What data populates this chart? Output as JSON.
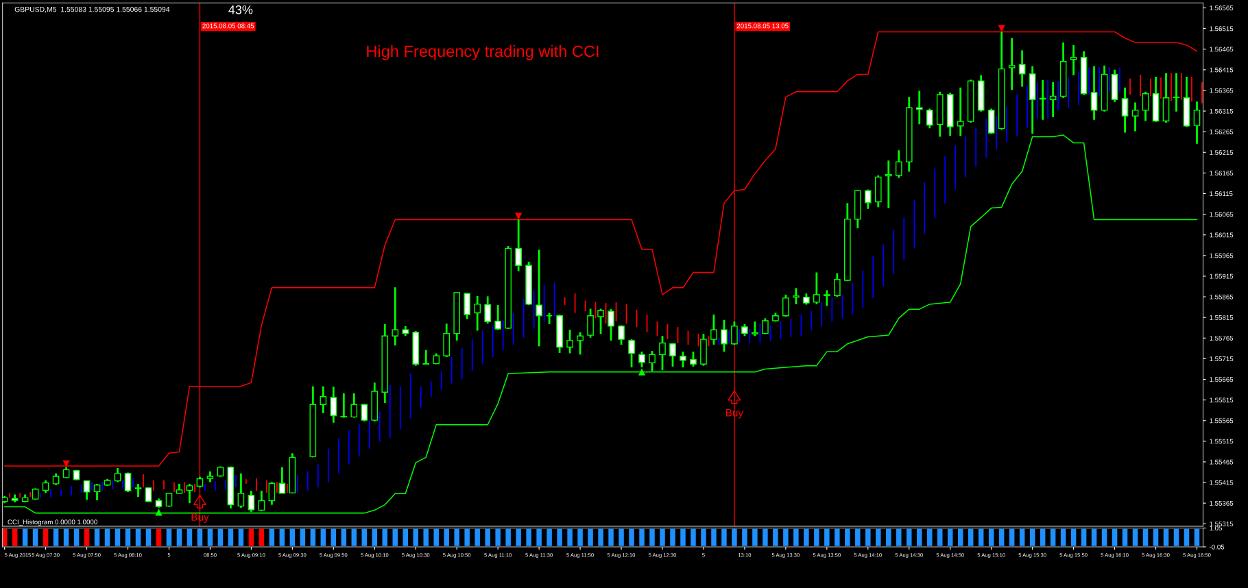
{
  "chart_data": [
    {
      "type": "candlestick",
      "title": "High Frequency trading with CCI",
      "annotations": [
        "GBPUSD,M5  1.55083 1.55095 1.55066 1.55094",
        "43%",
        {
          "text": "Buy",
          "x": "2015-08-05T08:45",
          "y": 1.55329
        },
        {
          "text": "Buy",
          "x": "2015-08-05T13:05",
          "y": 1.55582
        }
      ],
      "x": [
        "2015-08-05T07:10",
        "2015-08-05T07:15",
        "2015-08-05T07:20",
        "2015-08-05T07:25",
        "2015-08-05T07:30",
        "2015-08-05T07:35",
        "2015-08-05T07:40",
        "2015-08-05T07:45",
        "2015-08-05T07:50",
        "2015-08-05T07:55",
        "2015-08-05T08:00",
        "2015-08-05T08:05",
        "2015-08-05T08:10",
        "2015-08-05T08:15",
        "2015-08-05T08:20",
        "2015-08-05T08:25",
        "2015-08-05T08:30",
        "2015-08-05T08:35",
        "2015-08-05T08:40",
        "2015-08-05T08:45",
        "2015-08-05T08:50",
        "2015-08-05T08:55",
        "2015-08-05T09:00",
        "2015-08-05T09:05",
        "2015-08-05T09:10",
        "2015-08-05T09:15",
        "2015-08-05T09:20",
        "2015-08-05T09:25",
        "2015-08-05T09:30",
        "2015-08-05T09:35",
        "2015-08-05T09:40",
        "2015-08-05T09:45",
        "2015-08-05T09:50",
        "2015-08-05T09:55",
        "2015-08-05T10:00",
        "2015-08-05T10:05",
        "2015-08-05T10:10",
        "2015-08-05T10:15",
        "2015-08-05T10:20",
        "2015-08-05T10:25",
        "2015-08-05T10:30",
        "2015-08-05T10:35",
        "2015-08-05T10:40",
        "2015-08-05T10:45",
        "2015-08-05T10:50",
        "2015-08-05T10:55",
        "2015-08-05T11:00",
        "2015-08-05T11:05",
        "2015-08-05T11:10",
        "2015-08-05T11:15",
        "2015-08-05T11:20",
        "2015-08-05T11:25",
        "2015-08-05T11:30",
        "2015-08-05T11:35",
        "2015-08-05T11:40",
        "2015-08-05T11:45",
        "2015-08-05T11:50",
        "2015-08-05T11:55",
        "2015-08-05T12:00",
        "2015-08-05T12:05",
        "2015-08-05T12:10",
        "2015-08-05T12:15",
        "2015-08-05T12:20",
        "2015-08-05T12:25",
        "2015-08-05T12:30",
        "2015-08-05T12:35",
        "2015-08-05T12:40",
        "2015-08-05T12:45",
        "2015-08-05T12:50",
        "2015-08-05T12:55",
        "2015-08-05T13:00",
        "2015-08-05T13:05",
        "2015-08-05T13:10",
        "2015-08-05T13:15",
        "2015-08-05T13:20",
        "2015-08-05T13:25",
        "2015-08-05T13:30",
        "2015-08-05T13:35",
        "2015-08-05T13:40",
        "2015-08-05T13:45",
        "2015-08-05T13:50",
        "2015-08-05T13:55",
        "2015-08-05T14:00",
        "2015-08-05T14:05",
        "2015-08-05T14:10",
        "2015-08-05T14:15",
        "2015-08-05T14:20",
        "2015-08-05T14:25",
        "2015-08-05T14:30",
        "2015-08-05T14:35",
        "2015-08-05T14:40",
        "2015-08-05T14:45",
        "2015-08-05T14:50",
        "2015-08-05T14:55",
        "2015-08-05T15:00",
        "2015-08-05T15:05",
        "2015-08-05T15:10",
        "2015-08-05T15:15",
        "2015-08-05T15:20",
        "2015-08-05T15:25",
        "2015-08-05T15:30",
        "2015-08-05T15:35",
        "2015-08-05T15:40",
        "2015-08-05T15:45",
        "2015-08-05T15:50",
        "2015-08-05T15:55",
        "2015-08-05T16:00",
        "2015-08-05T16:05",
        "2015-08-05T16:10",
        "2015-08-05T16:15",
        "2015-08-05T16:20",
        "2015-08-05T16:25",
        "2015-08-05T16:30",
        "2015-08-05T16:35",
        "2015-08-05T16:40",
        "2015-08-05T16:45",
        "2015-08-05T16:50"
      ],
      "ohlc": [
        [
          1.55369,
          1.55382,
          1.55365,
          1.55378
        ],
        [
          1.55376,
          1.55386,
          1.55367,
          1.55372
        ],
        [
          1.55369,
          1.55386,
          1.55367,
          1.55378
        ],
        [
          1.55375,
          1.55401,
          1.55373,
          1.55399
        ],
        [
          1.55396,
          1.5542,
          1.5539,
          1.55414
        ],
        [
          1.55412,
          1.55437,
          1.55409,
          1.5543
        ],
        [
          1.55427,
          1.55452,
          1.55426,
          1.55446
        ],
        [
          1.55444,
          1.55446,
          1.5542,
          1.55422
        ],
        [
          1.55419,
          1.5542,
          1.55373,
          1.55392
        ],
        [
          1.55393,
          1.55412,
          1.55372,
          1.55409
        ],
        [
          1.55409,
          1.55424,
          1.55407,
          1.5542
        ],
        [
          1.55419,
          1.5545,
          1.55416,
          1.55437
        ],
        [
          1.55437,
          1.55439,
          1.55392,
          1.55395
        ],
        [
          1.55402,
          1.55412,
          1.5538,
          1.554
        ],
        [
          1.55402,
          1.55403,
          1.55367,
          1.55369
        ],
        [
          1.55371,
          1.55376,
          1.55354,
          1.55357
        ],
        [
          1.55358,
          1.5539,
          1.55356,
          1.55389
        ],
        [
          1.55389,
          1.55412,
          1.55389,
          1.55397
        ],
        [
          1.55396,
          1.55412,
          1.55365,
          1.55407
        ],
        [
          1.55406,
          1.55429,
          1.55403,
          1.55424
        ],
        [
          1.55425,
          1.55442,
          1.55416,
          1.5543
        ],
        [
          1.55431,
          1.55454,
          1.55429,
          1.55452
        ],
        [
          1.55452,
          1.55454,
          1.55352,
          1.55361
        ],
        [
          1.55358,
          1.55437,
          1.55354,
          1.55389
        ],
        [
          1.55384,
          1.55395,
          1.55344,
          1.55349
        ],
        [
          1.55348,
          1.55395,
          1.55346,
          1.55371
        ],
        [
          1.55371,
          1.55416,
          1.55361,
          1.55413
        ],
        [
          1.55413,
          1.55452,
          1.55389,
          1.55389
        ],
        [
          1.5539,
          1.55486,
          1.55389,
          1.55476
        ],
        null,
        [
          1.55478,
          1.55648,
          1.55476,
          1.55604
        ],
        [
          1.55604,
          1.55648,
          1.55583,
          1.55623
        ],
        [
          1.55621,
          1.55647,
          1.5556,
          1.55577
        ],
        [
          1.55574,
          1.55631,
          1.55572,
          1.55575
        ],
        [
          1.55574,
          1.55631,
          1.55572,
          1.55604
        ],
        [
          1.55604,
          1.55606,
          1.55563,
          1.55566
        ],
        [
          1.55566,
          1.55657,
          1.55563,
          1.55636
        ],
        [
          1.55634,
          1.55799,
          1.55608,
          1.5577
        ],
        [
          1.5577,
          1.55888,
          1.55747,
          1.55785
        ],
        [
          1.55785,
          1.55794,
          1.5577,
          1.55776
        ],
        [
          1.55779,
          1.55782,
          1.55698,
          1.55702
        ],
        [
          1.55702,
          1.55736,
          1.55702,
          1.55703
        ],
        [
          1.55703,
          1.55728,
          1.55702,
          1.55722
        ],
        [
          1.55722,
          1.558,
          1.55719,
          1.55776
        ],
        [
          1.55776,
          1.55875,
          1.55759,
          1.55875
        ],
        [
          1.55873,
          1.55875,
          1.55811,
          1.55822
        ],
        [
          1.55826,
          1.55867,
          1.55783,
          1.55847
        ],
        [
          1.55846,
          1.55866,
          1.558,
          1.55805
        ],
        [
          1.55806,
          1.55845,
          1.55785,
          1.55787
        ],
        [
          1.55789,
          1.55988,
          1.55787,
          1.55982
        ],
        [
          1.55982,
          1.56052,
          1.55927,
          1.55941
        ],
        [
          1.55941,
          1.5595,
          1.55845,
          1.55847
        ],
        [
          1.55845,
          1.55979,
          1.55745,
          1.55819
        ],
        [
          1.55819,
          1.55826,
          1.55799,
          1.55819
        ],
        [
          1.55819,
          1.55822,
          1.55729,
          1.55743
        ],
        [
          1.55743,
          1.55785,
          1.55728,
          1.55759
        ],
        [
          1.55759,
          1.55779,
          1.55725,
          1.5577
        ],
        [
          1.55772,
          1.55836,
          1.55766,
          1.55819
        ],
        [
          1.55817,
          1.55836,
          1.55775,
          1.55832
        ],
        [
          1.5583,
          1.55835,
          1.55759,
          1.55794
        ],
        [
          1.55794,
          1.55796,
          1.55749,
          1.55762
        ],
        [
          1.55759,
          1.55762,
          1.55694,
          1.55728
        ],
        [
          1.55725,
          1.55732,
          1.55694,
          1.55706
        ],
        [
          1.55705,
          1.55734,
          1.55685,
          1.55725
        ],
        [
          1.55725,
          1.5577,
          1.55687,
          1.55753
        ],
        [
          1.55751,
          1.55753,
          1.55696,
          1.55722
        ],
        [
          1.55721,
          1.55732,
          1.55694,
          1.55711
        ],
        [
          1.55713,
          1.55732,
          1.55696,
          1.55702
        ],
        [
          1.55702,
          1.55775,
          1.55698,
          1.55762
        ],
        [
          1.55762,
          1.55822,
          1.55749,
          1.55785
        ],
        [
          1.55785,
          1.55809,
          1.55732,
          1.55751
        ],
        [
          1.55751,
          1.55805,
          1.55749,
          1.55794
        ],
        [
          1.55792,
          1.55799,
          1.5577,
          1.55776
        ],
        [
          1.55775,
          1.55805,
          1.5577,
          1.55778
        ],
        [
          1.55776,
          1.55813,
          1.55775,
          1.55807
        ],
        [
          1.55807,
          1.55826,
          1.55805,
          1.55819
        ],
        [
          1.55819,
          1.5587,
          1.55817,
          1.55862
        ],
        [
          1.55864,
          1.55886,
          1.55847,
          1.55867
        ],
        [
          1.55864,
          1.55873,
          1.55846,
          1.5585
        ],
        [
          1.55852,
          1.55924,
          1.55847,
          1.5587
        ],
        [
          1.55868,
          1.55881,
          1.55843,
          1.5587
        ],
        [
          1.55868,
          1.55922,
          1.55865,
          1.55907
        ],
        [
          1.55905,
          1.56092,
          1.55903,
          1.56053
        ],
        [
          1.56053,
          1.56122,
          1.56031,
          1.56122
        ],
        [
          1.56122,
          1.56125,
          1.56078,
          1.56093
        ],
        [
          1.56095,
          1.56159,
          1.56082,
          1.56155
        ],
        [
          1.56158,
          1.56195,
          1.5608,
          1.56161
        ],
        [
          1.56159,
          1.5622,
          1.56153,
          1.56192
        ],
        [
          1.56192,
          1.56349,
          1.56168,
          1.56323
        ],
        [
          1.56323,
          1.56364,
          1.56283,
          1.56319
        ],
        [
          1.56317,
          1.56321,
          1.56273,
          1.56281
        ],
        [
          1.56283,
          1.56362,
          1.56253,
          1.56355
        ],
        [
          1.56355,
          1.56359,
          1.56255,
          1.56277
        ],
        [
          1.56279,
          1.56372,
          1.56255,
          1.5629
        ],
        [
          1.5629,
          1.56391,
          1.56287,
          1.56388
        ],
        [
          1.56388,
          1.56402,
          1.56314,
          1.56317
        ],
        [
          1.56317,
          1.56321,
          1.5626,
          1.56262
        ],
        [
          1.56273,
          1.56507,
          1.5627,
          1.56417
        ],
        [
          1.5642,
          1.56492,
          1.56366,
          1.56425
        ],
        [
          1.56428,
          1.56462,
          1.56374,
          1.56405
        ],
        [
          1.56405,
          1.56424,
          1.5626,
          1.56343
        ],
        [
          1.56344,
          1.5639,
          1.56294,
          1.56346
        ],
        [
          1.56343,
          1.56385,
          1.563,
          1.56351
        ],
        [
          1.56351,
          1.56481,
          1.56347,
          1.56435
        ],
        [
          1.5644,
          1.56475,
          1.56402,
          1.56445
        ],
        [
          1.56445,
          1.5646,
          1.56354,
          1.56357
        ],
        [
          1.5636,
          1.56424,
          1.56294,
          1.56317
        ],
        [
          1.56317,
          1.56425,
          1.56314,
          1.56404
        ],
        [
          1.56404,
          1.56415,
          1.56337,
          1.56343
        ],
        [
          1.56345,
          1.56372,
          1.56263,
          1.56303
        ],
        [
          1.56303,
          1.56336,
          1.56266,
          1.56317
        ],
        [
          1.56317,
          1.56362,
          1.56291,
          1.56357
        ],
        [
          1.56357,
          1.56398,
          1.56289,
          1.56291
        ],
        [
          1.56291,
          1.56407,
          1.56287,
          1.56347
        ],
        [
          1.56348,
          1.56407,
          1.56314,
          1.56349
        ],
        [
          1.56347,
          1.56398,
          1.56277,
          1.56279
        ],
        [
          1.5628,
          1.56338,
          1.56236,
          1.56317
        ]
      ],
      "series": [
        {
          "type": "bar",
          "base": [
            1.55378,
            1.55378,
            1.5538,
            1.55378,
            1.55378,
            1.55382,
            1.55384,
            1.5539,
            1.55395,
            1.55395,
            1.55399,
            1.554,
            1.55403,
            1.55403,
            1.55395,
            1.55399,
            1.55392,
            1.5539,
            1.55392,
            1.55395,
            1.55395,
            1.55397,
            1.55403,
            1.55412,
            1.55395,
            1.5539,
            1.5539,
            1.5539,
            1.5539,
            1.55395,
            1.55403,
            1.55416,
            1.55437,
            1.55459,
            1.5548,
            1.55497,
            1.55514,
            1.55523,
            1.55544,
            1.5557,
            1.55597,
            1.55623,
            1.5564,
            1.55655,
            1.55665,
            1.55685,
            1.55702,
            1.55719,
            1.55736,
            1.55749,
            1.55766,
            1.55788,
            1.55805,
            1.55817,
            1.55845,
            1.55826,
            1.5583,
            1.55813,
            1.558,
            1.55805,
            1.558,
            1.55792,
            1.55779,
            1.5577,
            1.55762,
            1.55753,
            1.55749,
            1.55745,
            1.55745,
            1.55749,
            1.55751,
            1.55753,
            1.55753,
            1.55753,
            1.55758,
            1.55762,
            1.55768,
            1.5577,
            1.55783,
            1.55794,
            1.55805,
            1.55813,
            1.55822,
            1.55839,
            1.55862,
            1.5589,
            1.5592,
            1.55954,
            1.55984,
            1.56018,
            1.56055,
            1.56091,
            1.56125,
            1.56155,
            1.5618,
            1.56202,
            1.56223,
            1.5624,
            1.56255,
            1.56274,
            1.56296,
            1.56296,
            1.56317,
            1.56323,
            1.5633,
            1.56355,
            1.56351,
            1.5636,
            1.5636,
            1.56355,
            1.56351,
            1.56351,
            1.56345,
            1.5634,
            1.56343,
            1.56338,
            1.56334
          ],
          "values": [
            0.00012,
            0.00012,
            0.00012,
            0.0001,
            0.00021,
            0.00017,
            0.00023,
            0.00019,
            0.00021,
            0.00021,
            0.00021,
            0.0002,
            0.00022,
            0.00032,
            0.00025,
            0.00021,
            0.00024,
            0.00026,
            0.0002,
            0.00017,
            0.00023,
            0.00023,
            0.0003,
            0.00011,
            0.0003,
            0.0003,
            0.00026,
            0.00022,
            0.00043,
            0.00047,
            0.00056,
            0.00081,
            0.00086,
            0.00084,
            0.00077,
            0.00069,
            0.00073,
            0.00128,
            0.00104,
            0.00111,
            0.00051,
            0.00037,
            0.00045,
            0.00064,
            0.00076,
            0.00077,
            0.00081,
            0.00077,
            0.00073,
            0.00077,
            0.00094,
            0.00093,
            0.00089,
            0.00082,
            0.00019,
            0.00047,
            0.00026,
            0.0004,
            0.0005,
            0.00047,
            0.00047,
            0.00042,
            0.00043,
            0.00035,
            0.00037,
            0.00039,
            0.00034,
            0.0003,
            0.00025,
            0.00017,
            0.00032,
            0.00034,
            0.00034,
            0.00047,
            0.00038,
            0.00043,
            0.00043,
            0.00052,
            0.00047,
            0.00058,
            0.00059,
            0.00056,
            0.00077,
            0.0009,
            0.00102,
            0.00102,
            0.00107,
            0.00103,
            0.00115,
            0.00124,
            0.00121,
            0.00115,
            0.00107,
            0.00098,
            0.00094,
            0.00094,
            0.00081,
            0.00086,
            0.001,
            0.00103,
            0.00089,
            0.00094,
            0.00071,
            0.00075,
            0.00081,
            0.00065,
            0.00071,
            0.00062,
            0.0006,
            0.00039,
            0.00052,
            0.00043,
            0.00051,
            0.00067,
            0.00064,
            0.0006,
            0.00051
          ],
          "colors": [
            "#ff0000",
            "#ff0000",
            "#ff0000",
            "#0000ff",
            "#0000ff",
            "#0000ff",
            "#0000ff",
            "#0000ff",
            "#0000ff",
            "#0000ff",
            "#0000ff",
            "#0000ff",
            "#0000ff",
            "#ff0000",
            "#ff0000",
            "#ff0000",
            "#ff0000",
            "#ff0000",
            "#ff0000",
            "#0000ff",
            "#0000ff",
            "#0000ff",
            "#0000ff",
            "#ff0000",
            "#ff0000",
            "#ff0000",
            "#ff0000",
            "#ff0000",
            "#0000ff",
            "#0000ff",
            "#0000ff",
            "#0000ff",
            "#0000ff",
            "#0000ff",
            "#0000ff",
            "#0000ff",
            "#0000ff",
            "#0000ff",
            "#0000ff",
            "#0000ff",
            "#0000ff",
            "#0000ff",
            "#0000ff",
            "#0000ff",
            "#0000ff",
            "#0000ff",
            "#0000ff",
            "#0000ff",
            "#0000ff",
            "#0000ff",
            "#0000ff",
            "#0000ff",
            "#0000ff",
            "#0000ff",
            "#ff0000",
            "#ff0000",
            "#ff0000",
            "#ff0000",
            "#ff0000",
            "#ff0000",
            "#ff0000",
            "#ff0000",
            "#ff0000",
            "#ff0000",
            "#ff0000",
            "#ff0000",
            "#ff0000",
            "#ff0000",
            "#ff0000",
            "#0000ff",
            "#0000ff",
            "#0000ff",
            "#0000ff",
            "#0000ff",
            "#0000ff",
            "#0000ff",
            "#0000ff",
            "#0000ff",
            "#0000ff",
            "#0000ff",
            "#0000ff",
            "#0000ff",
            "#0000ff",
            "#0000ff",
            "#0000ff",
            "#0000ff",
            "#0000ff",
            "#0000ff",
            "#0000ff",
            "#0000ff",
            "#0000ff",
            "#0000ff",
            "#0000ff",
            "#0000ff",
            "#0000ff",
            "#0000ff",
            "#0000ff",
            "#0000ff",
            "#0000ff",
            "#0000ff",
            "#0000ff",
            "#0000ff",
            "#0000ff",
            "#0000ff",
            "#0000ff",
            "#0000ff",
            "#0000ff",
            "#0000ff",
            "#0000ff",
            "#ff0000",
            "#ff0000",
            "#ff0000",
            "#ff0000",
            "#ff0000",
            "#ff0000",
            "#ff0000",
            "#ff0000"
          ]
        },
        {
          "type": "line",
          "color": "#ff0000",
          "x": [
            "2015-08-05T07:10",
            "2015-08-05T08:25",
            "2015-08-05T08:30",
            "2015-08-05T08:35",
            "2015-08-05T08:40",
            "2015-08-05T09:05",
            "2015-08-05T09:10",
            "2015-08-05T09:15",
            "2015-08-05T09:20",
            "2015-08-05T10:10",
            "2015-08-05T10:15",
            "2015-08-05T10:20",
            "2015-08-05T12:15",
            "2015-08-05T12:20",
            "2015-08-05T12:25",
            "2015-08-05T12:30",
            "2015-08-05T12:35",
            "2015-08-05T12:40",
            "2015-08-05T12:45",
            "2015-08-05T12:55",
            "2015-08-05T13:00",
            "2015-08-05T13:05",
            "2015-08-05T13:10",
            "2015-08-05T13:15",
            "2015-08-05T13:20",
            "2015-08-05T13:25",
            "2015-08-05T13:30",
            "2015-08-05T13:35",
            "2015-08-05T13:55",
            "2015-08-05T14:00",
            "2015-08-05T14:05",
            "2015-08-05T14:10",
            "2015-08-05T14:15",
            "2015-08-05T16:10",
            "2015-08-05T16:15",
            "2015-08-05T16:20",
            "2015-08-05T16:40",
            "2015-08-05T16:45",
            "2015-08-05T16:50"
          ],
          "values": [
            1.55455,
            1.55455,
            1.55486,
            1.55489,
            1.55648,
            1.55648,
            1.55657,
            1.55796,
            1.55887,
            1.55887,
            1.5599,
            1.56052,
            1.56052,
            1.5598,
            1.5598,
            1.5587,
            1.55887,
            1.55887,
            1.55924,
            1.55924,
            1.56092,
            1.56122,
            1.56125,
            1.56163,
            1.56195,
            1.56223,
            1.56349,
            1.56362,
            1.56362,
            1.56388,
            1.56404,
            1.56404,
            1.56507,
            1.56507,
            1.56492,
            1.56481,
            1.56481,
            1.56475,
            1.5646
          ]
        },
        {
          "type": "line",
          "color": "#00ff00",
          "x": [
            "2015-08-05T07:10",
            "2015-08-05T07:20",
            "2015-08-05T07:25",
            "2015-08-05T10:05",
            "2015-08-05T10:10",
            "2015-08-05T10:15",
            "2015-08-05T10:20",
            "2015-08-05T10:25",
            "2015-08-05T10:30",
            "2015-08-05T10:35",
            "2015-08-05T10:40",
            "2015-08-05T11:05",
            "2015-08-05T11:10",
            "2015-08-05T11:15",
            "2015-08-05T11:35",
            "2015-08-05T13:15",
            "2015-08-05T13:20",
            "2015-08-05T13:30",
            "2015-08-05T13:40",
            "2015-08-05T13:45",
            "2015-08-05T13:50",
            "2015-08-05T13:55",
            "2015-08-05T14:00",
            "2015-08-05T14:10",
            "2015-08-05T14:20",
            "2015-08-05T14:25",
            "2015-08-05T14:30",
            "2015-08-05T14:35",
            "2015-08-05T14:40",
            "2015-08-05T14:50",
            "2015-08-05T14:55",
            "2015-08-05T15:00",
            "2015-08-05T15:05",
            "2015-08-05T15:10",
            "2015-08-05T15:15",
            "2015-08-05T15:20",
            "2015-08-05T15:25",
            "2015-08-05T15:30",
            "2015-08-05T15:40",
            "2015-08-05T15:45",
            "2015-08-05T15:50",
            "2015-08-05T15:55",
            "2015-08-05T16:00",
            "2015-08-05T16:50"
          ],
          "values": [
            1.55356,
            1.55356,
            1.55341,
            1.55341,
            1.55348,
            1.55361,
            1.55388,
            1.55388,
            1.55463,
            1.55476,
            1.55555,
            1.55555,
            1.55606,
            1.55679,
            1.55683,
            1.55683,
            1.5569,
            1.55694,
            1.55698,
            1.55698,
            1.55732,
            1.55732,
            1.55751,
            1.55768,
            1.55772,
            1.55813,
            1.55835,
            1.55835,
            1.55847,
            1.55852,
            1.55896,
            1.56035,
            1.56057,
            1.5608,
            1.56082,
            1.56138,
            1.56169,
            1.56253,
            1.56253,
            1.56257,
            1.56238,
            1.56238,
            1.56052,
            1.56052
          ]
        },
        {
          "type": "scatter",
          "color": "#ff0000",
          "marker": "triangle",
          "x": [
            "2015-08-05T07:40",
            "2015-08-05T11:20",
            "2015-08-05T15:15"
          ],
          "values": [
            1.5546,
            1.5606,
            1.56515
          ]
        },
        {
          "type": "scatter",
          "color": "#00ff00",
          "marker": "triangle",
          "x": [
            "2015-08-05T08:25",
            "2015-08-05T12:20"
          ],
          "values": [
            1.55343,
            1.55683
          ]
        }
      ],
      "ref_lines": [
        {
          "axis": "x",
          "value": "2015-08-05T08:45",
          "label": "2015.08.05 08:45",
          "color": "#ff0000"
        },
        {
          "axis": "x",
          "value": "2015-08-05T13:05",
          "label": "2015.08.05 13:05",
          "color": "#ff0000"
        }
      ],
      "xlim": [
        "2015-08-05T07:09",
        "2015-08-05T16:53"
      ],
      "ylim": [
        1.55309,
        1.56577
      ],
      "yticks": [
        1.55315,
        1.55365,
        1.55415,
        1.55465,
        1.55515,
        1.55565,
        1.55615,
        1.55665,
        1.55715,
        1.55765,
        1.55815,
        1.55865,
        1.55915,
        1.55965,
        1.56015,
        1.56065,
        1.56115,
        1.56165,
        1.56215,
        1.56265,
        1.56315,
        1.56365,
        1.56415,
        1.56465,
        1.56515,
        1.56565
      ],
      "tick_labels": "y"
    },
    {
      "type": "bar",
      "title": "CCI_Histogram 0.0000 1.0000",
      "x": [
        "2015-08-05T07:10",
        "2015-08-05T07:15",
        "2015-08-05T07:20",
        "2015-08-05T07:25",
        "2015-08-05T07:30",
        "2015-08-05T07:35",
        "2015-08-05T07:40",
        "2015-08-05T07:45",
        "2015-08-05T07:50",
        "2015-08-05T07:55",
        "2015-08-05T08:00",
        "2015-08-05T08:05",
        "2015-08-05T08:10",
        "2015-08-05T08:15",
        "2015-08-05T08:20",
        "2015-08-05T08:25",
        "2015-08-05T08:30",
        "2015-08-05T08:35",
        "2015-08-05T08:40",
        "2015-08-05T08:45",
        "2015-08-05T08:50",
        "2015-08-05T08:55",
        "2015-08-05T09:00",
        "2015-08-05T09:05",
        "2015-08-05T09:10",
        "2015-08-05T09:15",
        "2015-08-05T09:20",
        "2015-08-05T09:25",
        "2015-08-05T09:30",
        "2015-08-05T09:35",
        "2015-08-05T09:40",
        "2015-08-05T09:45",
        "2015-08-05T09:50",
        "2015-08-05T09:55",
        "2015-08-05T10:00",
        "2015-08-05T10:05",
        "2015-08-05T10:10",
        "2015-08-05T10:15",
        "2015-08-05T10:20",
        "2015-08-05T10:25",
        "2015-08-05T10:30",
        "2015-08-05T10:35",
        "2015-08-05T10:40",
        "2015-08-05T10:45",
        "2015-08-05T10:50",
        "2015-08-05T10:55",
        "2015-08-05T11:00",
        "2015-08-05T11:05",
        "2015-08-05T11:10",
        "2015-08-05T11:15",
        "2015-08-05T11:20",
        "2015-08-05T11:25",
        "2015-08-05T11:30",
        "2015-08-05T11:35",
        "2015-08-05T11:40",
        "2015-08-05T11:45",
        "2015-08-05T11:50",
        "2015-08-05T11:55",
        "2015-08-05T12:00",
        "2015-08-05T12:05",
        "2015-08-05T12:10",
        "2015-08-05T12:15",
        "2015-08-05T12:20",
        "2015-08-05T12:25",
        "2015-08-05T12:30",
        "2015-08-05T12:35",
        "2015-08-05T12:40",
        "2015-08-05T12:45",
        "2015-08-05T12:50",
        "2015-08-05T12:55",
        "2015-08-05T13:00",
        "2015-08-05T13:05",
        "2015-08-05T13:10",
        "2015-08-05T13:15",
        "2015-08-05T13:20",
        "2015-08-05T13:25",
        "2015-08-05T13:30",
        "2015-08-05T13:35",
        "2015-08-05T13:40",
        "2015-08-05T13:45",
        "2015-08-05T13:50",
        "2015-08-05T13:55",
        "2015-08-05T14:00",
        "2015-08-05T14:05",
        "2015-08-05T14:10",
        "2015-08-05T14:15",
        "2015-08-05T14:20",
        "2015-08-05T14:25",
        "2015-08-05T14:30",
        "2015-08-05T14:35",
        "2015-08-05T14:40",
        "2015-08-05T14:45",
        "2015-08-05T14:50",
        "2015-08-05T14:55",
        "2015-08-05T15:00",
        "2015-08-05T15:05",
        "2015-08-05T15:10",
        "2015-08-05T15:15",
        "2015-08-05T15:20",
        "2015-08-05T15:25",
        "2015-08-05T15:30",
        "2015-08-05T15:35",
        "2015-08-05T15:40",
        "2015-08-05T15:45",
        "2015-08-05T15:50",
        "2015-08-05T15:55",
        "2015-08-05T16:00",
        "2015-08-05T16:05",
        "2015-08-05T16:10",
        "2015-08-05T16:15",
        "2015-08-05T16:20",
        "2015-08-05T16:25",
        "2015-08-05T16:30",
        "2015-08-05T16:35",
        "2015-08-05T16:40",
        "2015-08-05T16:45",
        "2015-08-05T16:50"
      ],
      "values": [
        1,
        1,
        1,
        1,
        1,
        1,
        1,
        1,
        1,
        1,
        1,
        1,
        1,
        1,
        1,
        1,
        1,
        1,
        1,
        1,
        1,
        1,
        1,
        1,
        1,
        1,
        1,
        1,
        1,
        1,
        1,
        1,
        1,
        1,
        1,
        1,
        1,
        1,
        1,
        1,
        1,
        1,
        1,
        1,
        1,
        1,
        1,
        1,
        1,
        1,
        1,
        1,
        1,
        1,
        1,
        1,
        1,
        1,
        1,
        1,
        1,
        1,
        1,
        1,
        1,
        1,
        1,
        1,
        1,
        1,
        1,
        1,
        1,
        1,
        1,
        1,
        1,
        1,
        1,
        1,
        1,
        1,
        1,
        1,
        1,
        1,
        1,
        1,
        1,
        1,
        1,
        1,
        1,
        1,
        1,
        1,
        1,
        1,
        1,
        1,
        1,
        1,
        1,
        1,
        1,
        1,
        1,
        1,
        1,
        1,
        1,
        1,
        1,
        1,
        1,
        1,
        1
      ],
      "colors": [
        "#ff0000",
        "#ff0000",
        "#1e90ff",
        "#1e90ff",
        "#ff0000",
        "#1e90ff",
        "#1e90ff",
        "#1e90ff",
        "#ff0000",
        "#1e90ff",
        "#1e90ff",
        "#1e90ff",
        "#1e90ff",
        "#1e90ff",
        "#1e90ff",
        "#ff0000",
        "#1e90ff",
        "#1e90ff",
        "#1e90ff",
        "#1e90ff",
        "#1e90ff",
        "#1e90ff",
        "#1e90ff",
        "#1e90ff",
        "#ff0000",
        "#ff0000",
        "#1e90ff",
        "#1e90ff",
        "#1e90ff",
        "#1e90ff",
        "#1e90ff",
        "#1e90ff",
        "#1e90ff",
        "#1e90ff",
        "#1e90ff",
        "#1e90ff",
        "#1e90ff",
        "#1e90ff",
        "#1e90ff",
        "#1e90ff",
        "#1e90ff",
        "#1e90ff",
        "#1e90ff",
        "#1e90ff",
        "#1e90ff",
        "#1e90ff",
        "#1e90ff",
        "#1e90ff",
        "#1e90ff",
        "#1e90ff",
        "#1e90ff",
        "#1e90ff",
        "#1e90ff",
        "#1e90ff",
        "#1e90ff",
        "#1e90ff",
        "#1e90ff",
        "#1e90ff",
        "#1e90ff",
        "#1e90ff",
        "#1e90ff",
        "#1e90ff",
        "#1e90ff",
        "#1e90ff",
        "#1e90ff",
        "#1e90ff",
        "#1e90ff",
        "#1e90ff",
        "#1e90ff",
        "#1e90ff",
        "#1e90ff",
        "#1e90ff",
        "#1e90ff",
        "#1e90ff",
        "#1e90ff",
        "#1e90ff",
        "#1e90ff",
        "#1e90ff",
        "#1e90ff",
        "#1e90ff",
        "#1e90ff",
        "#1e90ff",
        "#1e90ff",
        "#1e90ff",
        "#1e90ff",
        "#1e90ff",
        "#1e90ff",
        "#1e90ff",
        "#1e90ff",
        "#1e90ff",
        "#1e90ff",
        "#1e90ff",
        "#1e90ff",
        "#1e90ff",
        "#1e90ff",
        "#1e90ff",
        "#1e90ff",
        "#1e90ff",
        "#1e90ff",
        "#1e90ff",
        "#1e90ff",
        "#1e90ff",
        "#1e90ff",
        "#1e90ff",
        "#1e90ff",
        "#1e90ff",
        "#1e90ff",
        "#1e90ff",
        "#1e90ff",
        "#1e90ff",
        "#1e90ff",
        "#1e90ff",
        "#1e90ff",
        "#1e90ff",
        "#1e90ff",
        "#1e90ff",
        "#1e90ff"
      ],
      "ref_lines": [
        {
          "axis": "x",
          "value": "2015-08-05T08:45",
          "color": "#ff0000"
        },
        {
          "axis": "x",
          "value": "2015-08-05T13:05",
          "color": "#ff0000"
        }
      ],
      "xlim": [
        "2015-08-05T07:09",
        "2015-08-05T16:53"
      ],
      "ylim": [
        -0.05,
        1.05
      ],
      "yticks": [
        -0.05,
        1.05
      ],
      "xticks": [
        {
          "value": "2015-08-05T07:10",
          "label": "5 Aug 2015"
        },
        {
          "value": "2015-08-05T07:30",
          "label": "5 Aug 07:30"
        },
        {
          "value": "2015-08-05T07:50",
          "label": "5 Aug 07:50"
        },
        {
          "value": "2015-08-05T08:10",
          "label": "5 Aug 08:10"
        },
        {
          "value": "2015-08-05T08:30",
          "label": "5"
        },
        {
          "value": "2015-08-05T08:50",
          "label": "08:50"
        },
        {
          "value": "2015-08-05T09:10",
          "label": "5 Aug 09:10"
        },
        {
          "value": "2015-08-05T09:30",
          "label": "5 Aug 09:30"
        },
        {
          "value": "2015-08-05T09:50",
          "label": "5 Aug 09:50"
        },
        {
          "value": "2015-08-05T10:10",
          "label": "5 Aug 10:10"
        },
        {
          "value": "2015-08-05T10:30",
          "label": "5 Aug 10:30"
        },
        {
          "value": "2015-08-05T10:50",
          "label": "5 Aug 10:50"
        },
        {
          "value": "2015-08-05T11:10",
          "label": "5 Aug 11:10"
        },
        {
          "value": "2015-08-05T11:30",
          "label": "5 Aug 11:30"
        },
        {
          "value": "2015-08-05T11:50",
          "label": "5 Aug 11:50"
        },
        {
          "value": "2015-08-05T12:10",
          "label": "5 Aug 12:10"
        },
        {
          "value": "2015-08-05T12:30",
          "label": "5 Aug 12:30"
        },
        {
          "value": "2015-08-05T12:50",
          "label": "5"
        },
        {
          "value": "2015-08-05T13:10",
          "label": "13:10"
        },
        {
          "value": "2015-08-05T13:30",
          "label": "5 Aug 13:30"
        },
        {
          "value": "2015-08-05T13:50",
          "label": "5 Aug 13:50"
        },
        {
          "value": "2015-08-05T14:10",
          "label": "5 Aug 14:10"
        },
        {
          "value": "2015-08-05T14:30",
          "label": "5 Aug 14:30"
        },
        {
          "value": "2015-08-05T14:50",
          "label": "5 Aug 14:50"
        },
        {
          "value": "2015-08-05T15:10",
          "label": "5 Aug 15:10"
        },
        {
          "value": "2015-08-05T15:30",
          "label": "5 Aug 15:30"
        },
        {
          "value": "2015-08-05T15:50",
          "label": "5 Aug 15:50"
        },
        {
          "value": "2015-08-05T16:10",
          "label": "5 Aug 16:10"
        },
        {
          "value": "2015-08-05T16:30",
          "label": "5 Aug 16:30"
        },
        {
          "value": "2015-08-05T16:50",
          "label": "5 Aug 16:50"
        }
      ]
    }
  ]
}
